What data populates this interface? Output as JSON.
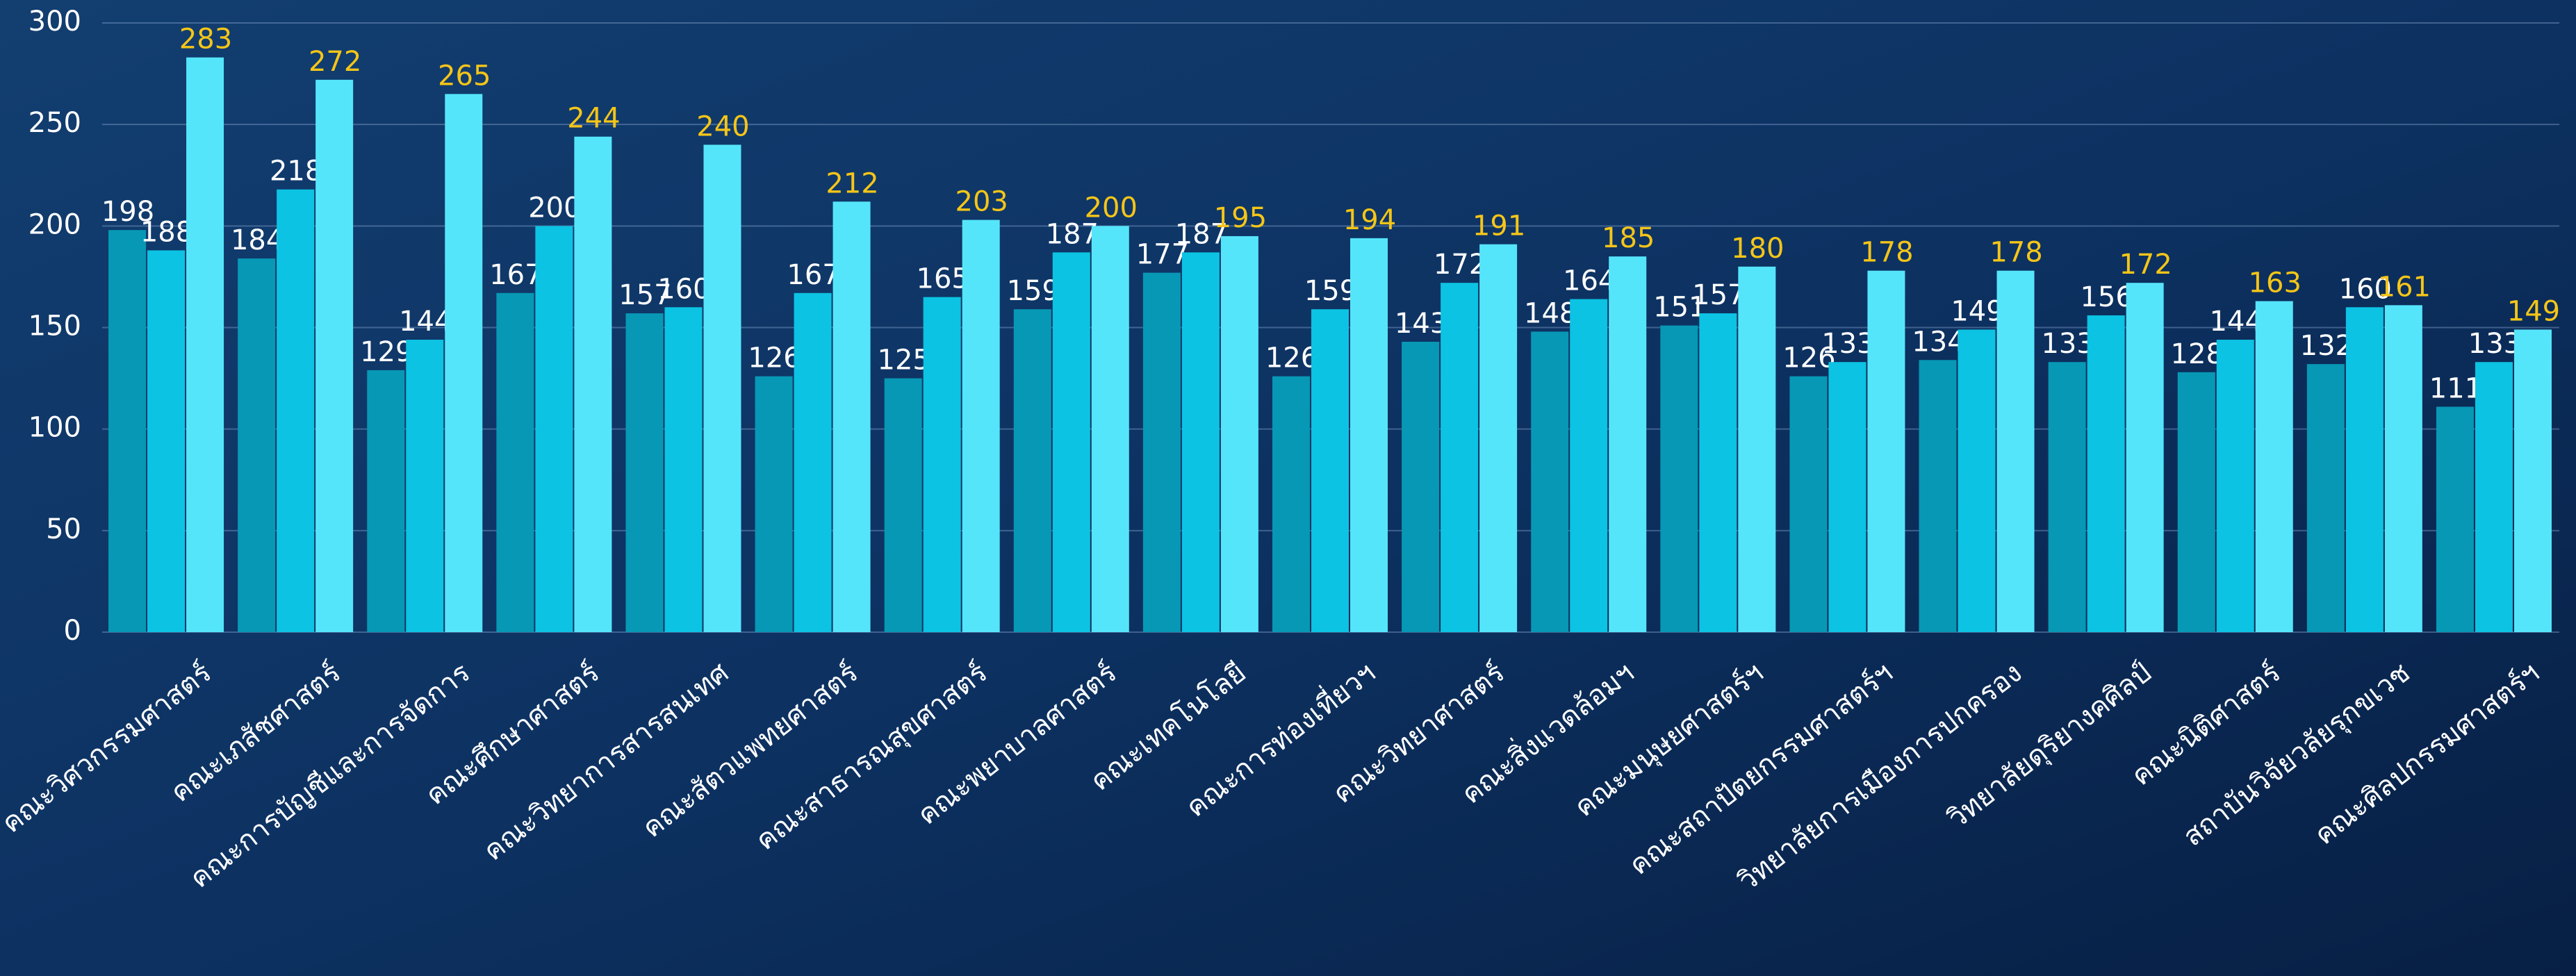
{
  "chart_data": {
    "type": "bar",
    "categories": [
      "คณะวิศวกรรมศาสตร์",
      "คณะเภสัชศาสตร์",
      "คณะการบัญชีและการจัดการ",
      "คณะศึกษาศาสตร์",
      "คณะวิทยาการสารสนเทศ",
      "คณะสัตวแพทยศาสตร์",
      "คณะสาธารณสุขศาสตร์",
      "คณะพยาบาลศาสตร์",
      "คณะเทคโนโลยี",
      "คณะการท่องเที่ยวฯ",
      "คณะวิทยาศาสตร์",
      "คณะสิ่งแวดล้อมฯ",
      "คณะมนุษยศาสตร์ฯ",
      "คณะสถาปัตยกรรมศาสตร์ฯ",
      "วิทยาลัยการเมืองการปกครอง",
      "วิทยาลัยดุริยางคศิลป์",
      "คณะนิติศาสตร์",
      "สถาบันวิจัยวลัยรุกขเวช",
      "คณะศิลปกรรมศาสตร์ฯ"
    ],
    "series": [
      {
        "color": "#0798b5",
        "label_color": "#ffffff",
        "values": [
          198,
          184,
          129,
          167,
          157,
          126,
          125,
          159,
          177,
          126,
          143,
          148,
          151,
          126,
          134,
          133,
          128,
          132,
          111
        ]
      },
      {
        "color": "#0cc3e3",
        "label_color": "#ffffff",
        "values": [
          188,
          218,
          144,
          200,
          160,
          167,
          165,
          187,
          187,
          159,
          172,
          164,
          157,
          133,
          149,
          156,
          144,
          160,
          133
        ]
      },
      {
        "color": "#55e5fb",
        "label_color": "#f5c518",
        "values": [
          283,
          272,
          265,
          244,
          240,
          212,
          203,
          200,
          195,
          194,
          191,
          185,
          180,
          178,
          178,
          172,
          163,
          161,
          149
        ]
      }
    ],
    "ylim": [
      0,
      300
    ],
    "yticks": [
      0,
      50,
      100,
      150,
      200,
      250,
      300
    ],
    "grid": true
  }
}
